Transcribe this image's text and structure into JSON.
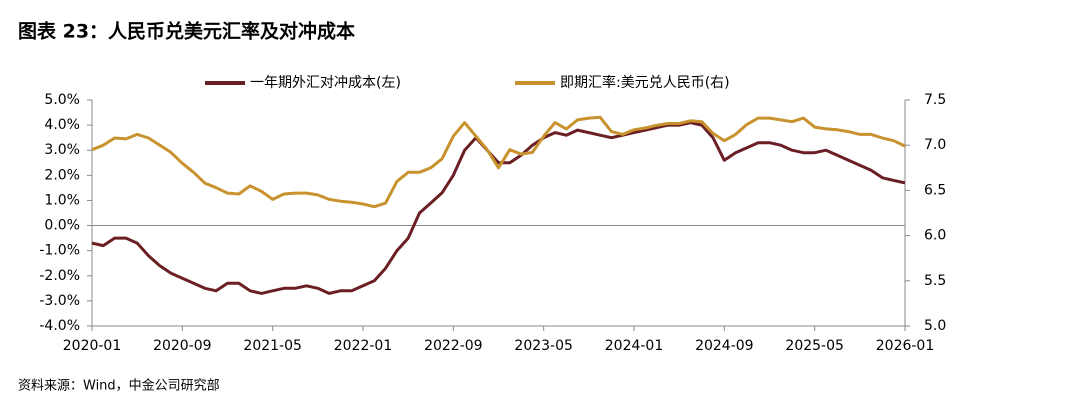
{
  "chart_data": {
    "type": "line",
    "title": "图表 23：人民币兑美元汇率及对冲成本",
    "source": "资料来源：Wind，中金公司研究部",
    "x": [
      "2020-01",
      "2020-02",
      "2020-03",
      "2020-04",
      "2020-05",
      "2020-06",
      "2020-07",
      "2020-08",
      "2020-09",
      "2020-10",
      "2020-11",
      "2020-12",
      "2021-01",
      "2021-02",
      "2021-03",
      "2021-04",
      "2021-05",
      "2021-06",
      "2021-07",
      "2021-08",
      "2021-09",
      "2021-10",
      "2021-11",
      "2021-12",
      "2022-01",
      "2022-02",
      "2022-03",
      "2022-04",
      "2022-05",
      "2022-06",
      "2022-07",
      "2022-08",
      "2022-09",
      "2022-10",
      "2022-11",
      "2022-12",
      "2023-01",
      "2023-02",
      "2023-03",
      "2023-04",
      "2023-05",
      "2023-06",
      "2023-07",
      "2023-08",
      "2023-09",
      "2023-10",
      "2023-11",
      "2023-12",
      "2024-01",
      "2024-02",
      "2024-03",
      "2024-04",
      "2024-05",
      "2024-06",
      "2024-07",
      "2024-08",
      "2024-09",
      "2024-10",
      "2024-11",
      "2024-12",
      "2025-01",
      "2025-02",
      "2025-03",
      "2025-04",
      "2025-05",
      "2025-06",
      "2025-07",
      "2025-08",
      "2025-09",
      "2025-10",
      "2025-11",
      "2025-12",
      "2026-01"
    ],
    "xtick_every": 8,
    "series": [
      {
        "name": "一年期外汇对冲成本(左)",
        "color": "#6b1f24",
        "axis": "y",
        "values": [
          -0.7,
          -0.8,
          -0.5,
          -0.5,
          -0.7,
          -1.2,
          -1.6,
          -1.9,
          -2.1,
          -2.3,
          -2.5,
          -2.6,
          -2.3,
          -2.3,
          -2.6,
          -2.7,
          -2.6,
          -2.5,
          -2.5,
          -2.4,
          -2.5,
          -2.7,
          -2.6,
          -2.6,
          -2.4,
          -2.2,
          -1.7,
          -1.0,
          -0.5,
          0.5,
          0.9,
          1.3,
          2.0,
          3.0,
          3.5,
          3.0,
          2.5,
          2.5,
          2.8,
          3.2,
          3.5,
          3.7,
          3.6,
          3.8,
          3.7,
          3.6,
          3.5,
          3.6,
          3.7,
          3.8,
          3.9,
          4.0,
          4.0,
          4.1,
          4.0,
          3.5,
          2.6,
          2.9,
          3.1,
          3.3,
          3.3,
          3.2,
          3.0,
          2.9,
          2.9,
          3.0,
          2.8,
          2.6,
          2.4,
          2.2,
          1.9,
          1.8,
          1.7
        ]
      },
      {
        "name": "即期汇率:美元兑人民币(右)",
        "color": "#c8922e",
        "axis": "y2",
        "values": [
          6.95,
          7.0,
          7.08,
          7.07,
          7.12,
          7.08,
          7.0,
          6.92,
          6.8,
          6.7,
          6.58,
          6.53,
          6.47,
          6.46,
          6.55,
          6.49,
          6.4,
          6.46,
          6.47,
          6.47,
          6.45,
          6.4,
          6.38,
          6.37,
          6.35,
          6.32,
          6.36,
          6.6,
          6.7,
          6.7,
          6.75,
          6.85,
          7.1,
          7.25,
          7.1,
          6.95,
          6.75,
          6.95,
          6.9,
          6.92,
          7.1,
          7.25,
          7.18,
          7.28,
          7.3,
          7.31,
          7.15,
          7.12,
          7.17,
          7.19,
          7.22,
          7.24,
          7.24,
          7.27,
          7.26,
          7.13,
          7.05,
          7.12,
          7.23,
          7.3,
          7.3,
          7.28,
          7.26,
          7.3,
          7.2,
          7.18,
          7.17,
          7.15,
          7.12,
          7.12,
          7.08,
          7.05,
          6.99
        ]
      }
    ],
    "ylim": [
      -4,
      5
    ],
    "yticks": [
      {
        "value": 5,
        "label": "5.0%"
      },
      {
        "value": 4,
        "label": "4.0%"
      },
      {
        "value": 3,
        "label": "3.0%"
      },
      {
        "value": 2,
        "label": "2.0%"
      },
      {
        "value": 1,
        "label": "1.0%"
      },
      {
        "value": 0,
        "label": "0.0%"
      },
      {
        "value": -1,
        "label": "-1.0%"
      },
      {
        "value": -2,
        "label": "-2.0%"
      },
      {
        "value": -3,
        "label": "-3.0%"
      },
      {
        "value": -4,
        "label": "-4.0%"
      }
    ],
    "y2lim": [
      5,
      7.5
    ],
    "y2ticks": [
      7.5,
      {
        "value": 7,
        "label": "7.0"
      },
      6.5,
      {
        "value": 6,
        "label": "6.0"
      },
      5.5,
      {
        "value": 5,
        "label": "5.0"
      }
    ]
  }
}
